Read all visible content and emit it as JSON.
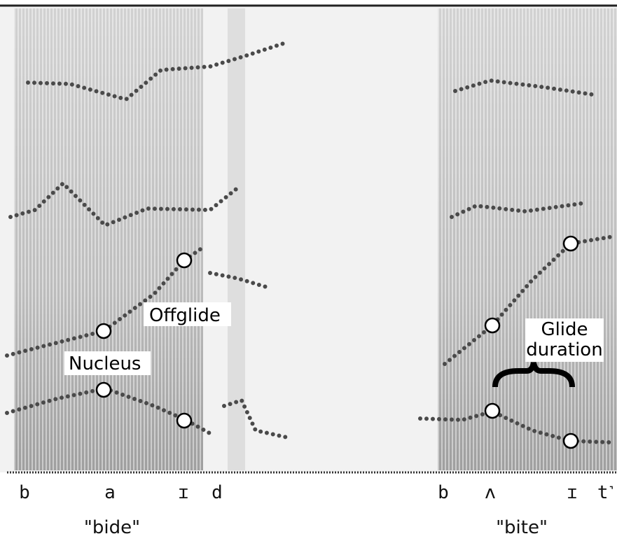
{
  "annotations": {
    "offglide": "Offglide",
    "nucleus": "Nucleus",
    "glide": "Glide",
    "duration": "duration"
  },
  "segments": {
    "bide": [
      "b",
      "a",
      "ɪ",
      "d"
    ],
    "bite": [
      "b",
      "ʌ",
      "ɪ",
      "t˺"
    ]
  },
  "words": {
    "bide": "\"bide\"",
    "bite": "\"bite\""
  }
}
